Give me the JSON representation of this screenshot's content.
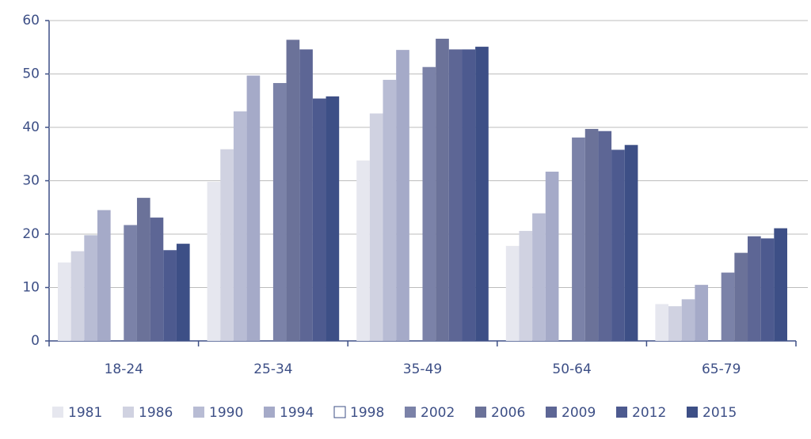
{
  "chart_data": {
    "type": "bar",
    "categories": [
      "18-24",
      "25-34",
      "35-49",
      "50-64",
      "65-79"
    ],
    "series": [
      {
        "name": "1981",
        "color": "#e6e7ef",
        "values": [
          14.7,
          29.8,
          33.8,
          17.8,
          6.9
        ]
      },
      {
        "name": "1986",
        "color": "#d0d2e1",
        "values": [
          16.8,
          35.9,
          42.6,
          20.6,
          6.5
        ]
      },
      {
        "name": "1990",
        "color": "#b8bcd4",
        "values": [
          19.8,
          43.0,
          48.9,
          23.9,
          7.8
        ]
      },
      {
        "name": "1994",
        "color": "#a5aac8",
        "values": [
          24.5,
          49.7,
          54.5,
          31.7,
          10.5
        ]
      },
      {
        "name": "1998",
        "color": "#ffffff",
        "values": [
          null,
          null,
          null,
          null,
          null
        ]
      },
      {
        "name": "2002",
        "color": "#7b82a8",
        "values": [
          21.7,
          48.3,
          51.3,
          38.1,
          12.8
        ]
      },
      {
        "name": "2006",
        "color": "#6b7299",
        "values": [
          26.8,
          56.4,
          56.6,
          39.7,
          16.5
        ]
      },
      {
        "name": "2009",
        "color": "#5d6695",
        "values": [
          23.1,
          54.6,
          54.6,
          39.3,
          19.6
        ]
      },
      {
        "name": "2012",
        "color": "#4d5a8f",
        "values": [
          17.0,
          45.4,
          54.6,
          35.8,
          19.2
        ]
      },
      {
        "name": "2015",
        "color": "#3d4f86",
        "values": [
          18.2,
          45.8,
          55.1,
          36.7,
          21.1
        ]
      }
    ],
    "ylim": [
      0,
      60
    ],
    "yticks": [
      0,
      10,
      20,
      30,
      40,
      50,
      60
    ],
    "grid": true,
    "legend": "bottom"
  }
}
